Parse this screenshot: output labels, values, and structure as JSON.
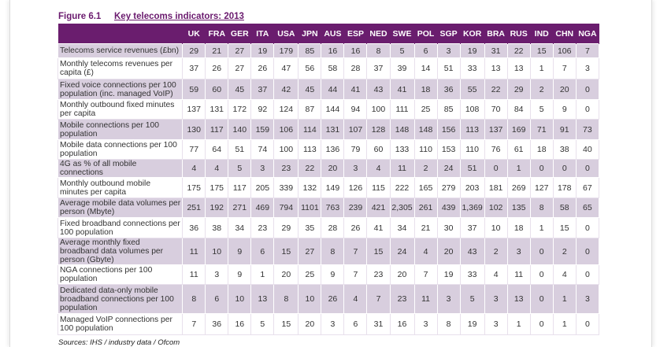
{
  "figure": {
    "number": "Figure 6.1",
    "title": "Key telecoms indicators: 2013"
  },
  "table": {
    "columns": [
      "UK",
      "FRA",
      "GER",
      "ITA",
      "USA",
      "JPN",
      "AUS",
      "ESP",
      "NED",
      "SWE",
      "POL",
      "SGP",
      "KOR",
      "BRA",
      "RUS",
      "IND",
      "CHN",
      "NGA"
    ],
    "rows": [
      {
        "label": "Telecoms service revenues (£bn)",
        "values": [
          "29",
          "21",
          "27",
          "19",
          "179",
          "85",
          "16",
          "16",
          "8",
          "5",
          "6",
          "3",
          "19",
          "31",
          "22",
          "15",
          "106",
          "7"
        ]
      },
      {
        "label": "Monthly telecoms revenues per capita (£)",
        "values": [
          "37",
          "26",
          "27",
          "26",
          "47",
          "56",
          "58",
          "28",
          "37",
          "39",
          "14",
          "51",
          "33",
          "13",
          "13",
          "1",
          "7",
          "3"
        ]
      },
      {
        "label": "Fixed voice connections per 100 population (inc. managed VoIP)",
        "values": [
          "59",
          "60",
          "45",
          "37",
          "42",
          "45",
          "44",
          "41",
          "43",
          "41",
          "18",
          "36",
          "55",
          "22",
          "29",
          "2",
          "20",
          "0"
        ]
      },
      {
        "label": "Monthly outbound fixed minutes per capita",
        "values": [
          "137",
          "131",
          "172",
          "92",
          "124",
          "87",
          "144",
          "94",
          "100",
          "111",
          "25",
          "85",
          "108",
          "70",
          "84",
          "5",
          "9",
          "0"
        ]
      },
      {
        "label": "Mobile connections per 100 population",
        "values": [
          "130",
          "117",
          "140",
          "159",
          "106",
          "114",
          "131",
          "107",
          "128",
          "148",
          "148",
          "156",
          "113",
          "137",
          "169",
          "71",
          "91",
          "73"
        ]
      },
      {
        "label": "Mobile data connections per 100 population",
        "values": [
          "77",
          "64",
          "51",
          "74",
          "100",
          "113",
          "136",
          "79",
          "60",
          "133",
          "110",
          "153",
          "110",
          "76",
          "61",
          "18",
          "38",
          "40"
        ]
      },
      {
        "label": "4G as % of all mobile connections",
        "values": [
          "4",
          "4",
          "5",
          "3",
          "23",
          "22",
          "20",
          "3",
          "4",
          "11",
          "2",
          "24",
          "51",
          "0",
          "1",
          "0",
          "0",
          "0"
        ]
      },
      {
        "label": "Monthly outbound mobile minutes per capita",
        "values": [
          "175",
          "175",
          "117",
          "205",
          "339",
          "132",
          "149",
          "126",
          "115",
          "222",
          "165",
          "279",
          "203",
          "181",
          "269",
          "127",
          "178",
          "67"
        ]
      },
      {
        "label": "Average mobile data volumes per person (Mbyte)",
        "values": [
          "251",
          "192",
          "271",
          "469",
          "794",
          "1101",
          "763",
          "239",
          "421",
          "2,305",
          "261",
          "439",
          "1,369",
          "102",
          "135",
          "8",
          "58",
          "65"
        ]
      },
      {
        "label": "Fixed broadband connections per 100 population",
        "values": [
          "36",
          "38",
          "34",
          "23",
          "29",
          "35",
          "28",
          "26",
          "41",
          "34",
          "21",
          "30",
          "37",
          "10",
          "18",
          "1",
          "15",
          "0"
        ]
      },
      {
        "label": "Average monthly fixed broadband data volumes per person (Gbyte)",
        "values": [
          "11",
          "10",
          "9",
          "6",
          "15",
          "27",
          "8",
          "7",
          "15",
          "24",
          "4",
          "20",
          "43",
          "2",
          "3",
          "0",
          "2",
          "0"
        ]
      },
      {
        "label": "NGA connections per 100 population",
        "values": [
          "11",
          "3",
          "9",
          "1",
          "20",
          "25",
          "9",
          "7",
          "23",
          "20",
          "7",
          "19",
          "33",
          "4",
          "11",
          "0",
          "4",
          "0"
        ]
      },
      {
        "label": "Dedicated data-only mobile broadband connections per 100 population",
        "values": [
          "8",
          "6",
          "10",
          "13",
          "8",
          "10",
          "26",
          "4",
          "7",
          "23",
          "11",
          "3",
          "5",
          "3",
          "13",
          "0",
          "1",
          "3"
        ]
      },
      {
        "label": "Managed VoIP connections per 100 population",
        "values": [
          "7",
          "36",
          "16",
          "5",
          "15",
          "20",
          "3",
          "6",
          "31",
          "16",
          "3",
          "8",
          "19",
          "3",
          "1",
          "0",
          "1",
          "0"
        ]
      }
    ]
  },
  "sources": "Sources: IHS / industry data / Ofcom",
  "colors": {
    "header_bg": "#6a1d6e",
    "title": "#6a1a6e",
    "stripe": "#d8cede"
  }
}
